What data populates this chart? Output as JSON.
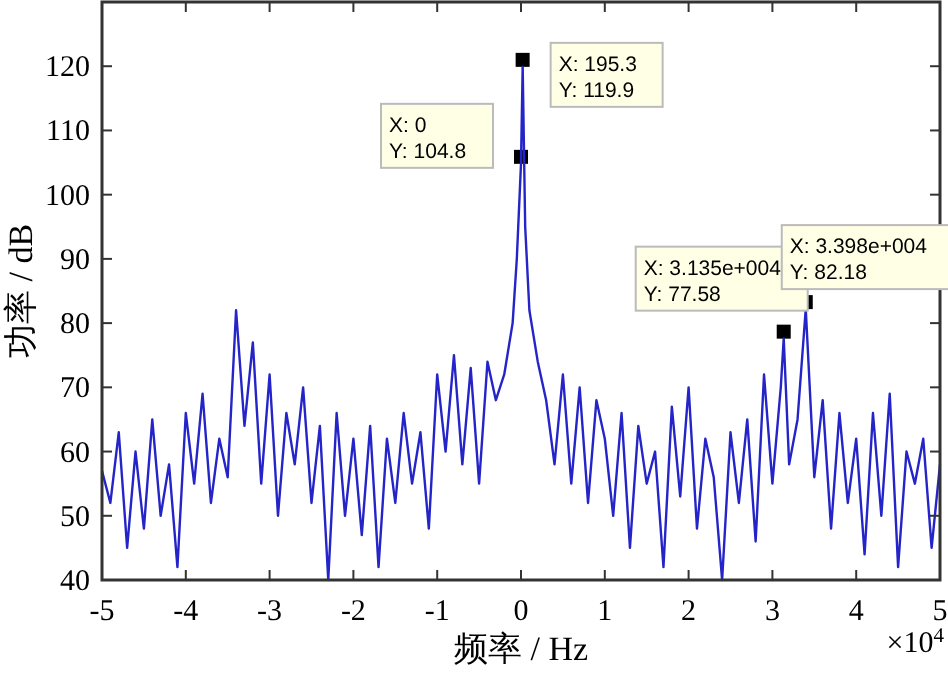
{
  "chart_data": {
    "type": "line",
    "xlabel": "频率 / Hz",
    "ylabel": "功率 / dB",
    "xlim": [
      -5,
      5
    ],
    "xticks": [
      -5,
      -4,
      -3,
      -2,
      -1,
      0,
      1,
      2,
      3,
      4,
      5
    ],
    "ylim": [
      40,
      130
    ],
    "yticks": [
      40,
      50,
      60,
      70,
      80,
      90,
      100,
      110,
      120
    ],
    "marker": "none",
    "line_style": "solid",
    "annotations": [
      "×10$^{4}$",
      {
        "text": "X: 0\nY: 104.8",
        "x": 0,
        "y": 104.8
      },
      {
        "text": "X: 195.3\nY: 119.9",
        "x": 0.01953,
        "y": 119.9
      },
      {
        "text": "X: 3.135e+004\nY: 77.58",
        "x": 3.135,
        "y": 77.58
      },
      {
        "text": "X: 3.398e+004\nY: 82.18",
        "x": 3.398,
        "y": 82.18
      }
    ],
    "series": [
      {
        "color": "#2424c8",
        "x": [
          -5,
          -4.9,
          -4.8,
          -4.7,
          -4.6,
          -4.5,
          -4.4,
          -4.3,
          -4.2,
          -4.1,
          -4,
          -3.9,
          -3.8,
          -3.7,
          -3.6,
          -3.5,
          -3.4,
          -3.3,
          -3.2,
          -3.1,
          -3,
          -2.9,
          -2.8,
          -2.7,
          -2.6,
          -2.5,
          -2.4,
          -2.3,
          -2.2,
          -2.1,
          -2,
          -1.9,
          -1.8,
          -1.7,
          -1.6,
          -1.5,
          -1.4,
          -1.3,
          -1.2,
          -1.1,
          -1,
          -0.9,
          -0.8,
          -0.7,
          -0.6,
          -0.5,
          -0.4,
          -0.3,
          -0.2,
          -0.1,
          -0.05,
          0,
          0.02,
          0.05,
          0.1,
          0.2,
          0.3,
          0.4,
          0.5,
          0.6,
          0.7,
          0.8,
          0.9,
          1,
          1.1,
          1.2,
          1.3,
          1.4,
          1.5,
          1.6,
          1.7,
          1.8,
          1.9,
          2,
          2.1,
          2.2,
          2.3,
          2.4,
          2.5,
          2.6,
          2.7,
          2.8,
          2.9,
          3,
          3.1,
          3.135,
          3.2,
          3.3,
          3.398,
          3.5,
          3.6,
          3.7,
          3.8,
          3.9,
          4,
          4.1,
          4.2,
          4.3,
          4.4,
          4.5,
          4.6,
          4.7,
          4.8,
          4.9,
          5
        ],
        "values": [
          57,
          52,
          63,
          45,
          60,
          48,
          65,
          50,
          58,
          42,
          66,
          55,
          69,
          52,
          62,
          56,
          82,
          64,
          77,
          55,
          72,
          50,
          66,
          58,
          70,
          52,
          64,
          40,
          66,
          50,
          62,
          47,
          64,
          42,
          62,
          52,
          66,
          55,
          63,
          48,
          72,
          60,
          75,
          58,
          73,
          55,
          74,
          68,
          72,
          80,
          90,
          104.8,
          119.9,
          95,
          82,
          74,
          68,
          58,
          72,
          55,
          70,
          52,
          68,
          62,
          50,
          66,
          45,
          64,
          55,
          60,
          42,
          67,
          53,
          70,
          48,
          62,
          56,
          40,
          63,
          52,
          65,
          46,
          72,
          55,
          70,
          77.6,
          58,
          65,
          82.2,
          56,
          68,
          48,
          66,
          52,
          62,
          44,
          66,
          50,
          69,
          42,
          60,
          55,
          62,
          45,
          58
        ]
      }
    ]
  }
}
